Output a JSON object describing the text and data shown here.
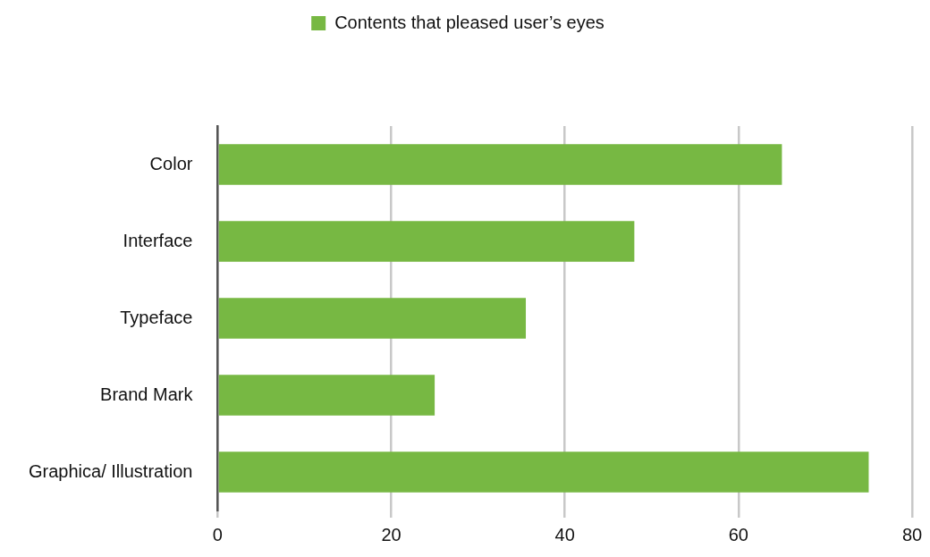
{
  "chart_data": {
    "type": "bar",
    "orientation": "horizontal",
    "categories": [
      "Color",
      "Interface",
      "Typeface",
      "Brand Mark",
      "Graphica/ Illustration"
    ],
    "series": [
      {
        "name": "Contents that pleased user’s eyes",
        "color": "#77b843",
        "values": [
          65,
          48,
          35.5,
          25,
          75
        ]
      }
    ],
    "xlim": [
      0,
      80
    ],
    "xticks": [
      0,
      20,
      40,
      60,
      80
    ],
    "grid": "x",
    "legend": "top"
  }
}
